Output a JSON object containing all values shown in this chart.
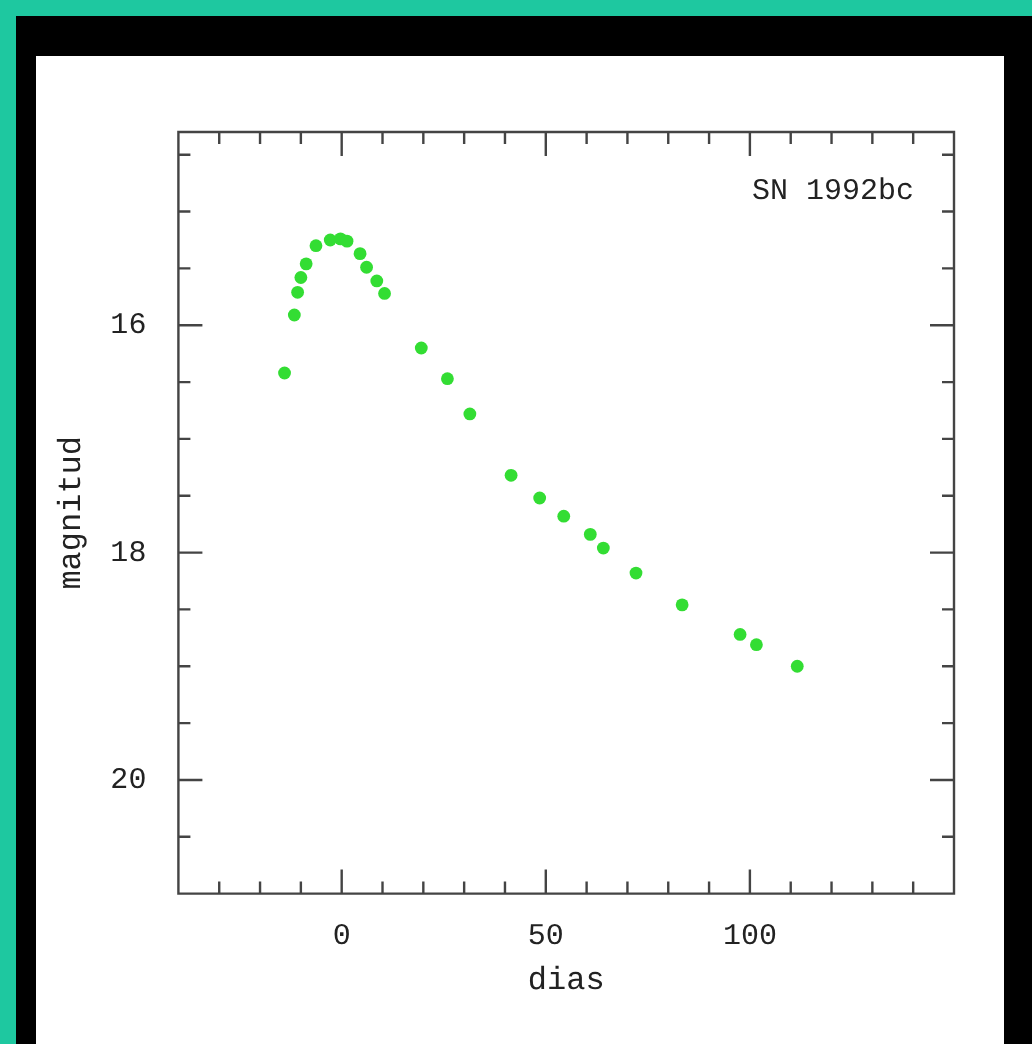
{
  "chart_data": {
    "type": "scatter",
    "xlabel": "dias",
    "ylabel": "magnitud",
    "annotations": [
      "SN 1992bc"
    ],
    "xlim": [
      -40,
      150
    ],
    "ylim": [
      21,
      14.3
    ],
    "xticks": [
      {
        "value": -30,
        "label": null
      },
      {
        "value": -20,
        "label": null
      },
      {
        "value": -10,
        "label": null
      },
      0,
      {
        "value": 10,
        "label": null
      },
      {
        "value": 20,
        "label": null
      },
      {
        "value": 30,
        "label": null
      },
      {
        "value": 40,
        "label": null
      },
      50,
      {
        "value": 60,
        "label": null
      },
      {
        "value": 70,
        "label": null
      },
      {
        "value": 80,
        "label": null
      },
      {
        "value": 90,
        "label": null
      },
      100,
      {
        "value": 110,
        "label": null
      },
      {
        "value": 120,
        "label": null
      },
      {
        "value": 130,
        "label": null
      },
      {
        "value": 140,
        "label": null
      }
    ],
    "yticks": [
      {
        "value": 14.5,
        "label": null
      },
      {
        "value": 15,
        "label": null
      },
      {
        "value": 15.5,
        "label": null
      },
      16,
      {
        "value": 16.5,
        "label": null
      },
      {
        "value": 17,
        "label": null
      },
      {
        "value": 17.5,
        "label": null
      },
      18,
      {
        "value": 18.5,
        "label": null
      },
      {
        "value": 19,
        "label": null
      },
      {
        "value": 19.5,
        "label": null
      },
      20,
      {
        "value": 20.5,
        "label": null
      }
    ],
    "grid": false,
    "legend": false,
    "marker": "circle",
    "series": [
      {
        "color": "#33dd33",
        "x": [
          -14,
          -11.6,
          -10.8,
          -10,
          -8.7,
          -6.3,
          -2.8,
          -0.3,
          1.3,
          4.5,
          6.1,
          8.6,
          10.5,
          19.5,
          25.9,
          31.4,
          41.5,
          48.5,
          54.4,
          60.9,
          64.1,
          72.1,
          83.4,
          97.6,
          101.6,
          111.6
        ],
        "values": [
          16.42,
          15.91,
          15.71,
          15.58,
          15.46,
          15.3,
          15.25,
          15.24,
          15.26,
          15.37,
          15.49,
          15.61,
          15.72,
          16.2,
          16.47,
          16.78,
          17.32,
          17.52,
          17.68,
          17.84,
          17.96,
          18.18,
          18.46,
          18.72,
          18.81,
          19.0
        ]
      }
    ]
  }
}
